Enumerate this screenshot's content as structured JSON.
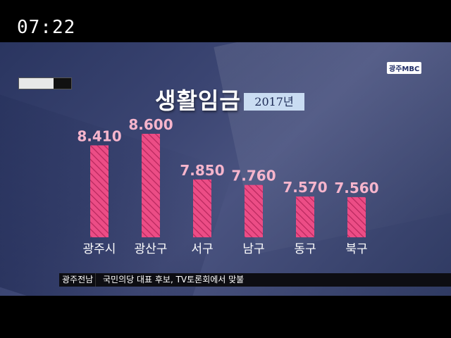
{
  "broadcast": {
    "time": "07:22",
    "progress": 0.66,
    "logo": "광주MBC"
  },
  "header": {
    "title": "생활임금",
    "year": "2017년"
  },
  "ticker": {
    "region": "광주전남",
    "headline": "국민의당 대표 후보, TV토론회에서 맞불"
  },
  "colors": {
    "bar": "#ec4d86",
    "bar_hatch": "#b8285e",
    "value_label": "#f6b5cc",
    "category_label": "#ffffff"
  },
  "chart_data": {
    "type": "bar",
    "title": "생활임금",
    "subtitle": "2017년",
    "categories": [
      "광주시",
      "광산구",
      "서구",
      "남구",
      "동구",
      "북구"
    ],
    "values": [
      8410,
      8600,
      7850,
      7760,
      7570,
      7560
    ],
    "value_labels": [
      "8.410",
      "8.600",
      "7.850",
      "7.760",
      "7.570",
      "7.560"
    ],
    "xlabel": "",
    "ylabel": "",
    "ylim": [
      6900,
      8600
    ],
    "grid": false,
    "legend": "none"
  }
}
